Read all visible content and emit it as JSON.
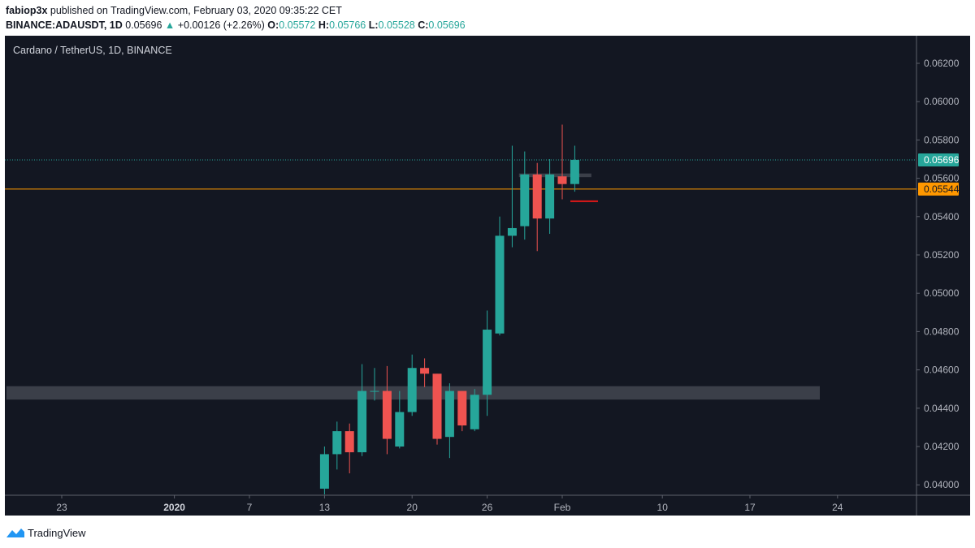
{
  "header": {
    "author": "fabiop3x",
    "published_text": " published on TradingView.com, February 03, 2020 09:35:22 CET",
    "symbol": "BINANCE:ADAUSDT, 1D",
    "last": "0.05696",
    "arrow": "▲",
    "change": "+0.00126 (+2.26%)",
    "o_label": "O:",
    "o_value": "0.05572",
    "h_label": "H:",
    "h_value": "0.05766",
    "l_label": "L:",
    "l_value": "0.05528",
    "c_label": "C:",
    "c_value": "0.05696"
  },
  "chart_title": "Cardano / TetherUS, 1D, BINANCE",
  "footer": {
    "brand": "TradingView"
  },
  "colors": {
    "background": "#131722",
    "up": "#26a69a",
    "down": "#ef5350",
    "axis_text": "#b2b5be",
    "orange_line": "#ff9800",
    "zone": "#4a4d57"
  },
  "chart_data": {
    "type": "candlestick",
    "title": "Cardano / TetherUS, 1D, BINANCE",
    "x_tick_labels": [
      "23",
      "2020",
      "7",
      "13",
      "20",
      "26",
      "Feb",
      "10",
      "17",
      "24"
    ],
    "y_tick_labels": [
      "0.06200",
      "0.06000",
      "0.05800",
      "0.05600",
      "0.05400",
      "0.05200",
      "0.05000",
      "0.04800",
      "0.04600",
      "0.04400",
      "0.04200",
      "0.04000"
    ],
    "ylim": [
      0.0394,
      0.0638
    ],
    "x_days_since_dec23": [
      0,
      9,
      15,
      21,
      28,
      34,
      40,
      48,
      55,
      62
    ],
    "candles": [
      {
        "open": 0.0398,
        "high": 0.042,
        "low": 0.0395,
        "close": 0.0416
      },
      {
        "open": 0.0416,
        "high": 0.0433,
        "low": 0.0408,
        "close": 0.0428
      },
      {
        "open": 0.0428,
        "high": 0.0432,
        "low": 0.0406,
        "close": 0.0417
      },
      {
        "open": 0.0417,
        "high": 0.0463,
        "low": 0.0415,
        "close": 0.0449
      },
      {
        "open": 0.0449,
        "high": 0.0461,
        "low": 0.0444,
        "close": 0.0449
      },
      {
        "open": 0.0449,
        "high": 0.0462,
        "low": 0.0416,
        "close": 0.0424
      },
      {
        "open": 0.042,
        "high": 0.0449,
        "low": 0.0419,
        "close": 0.0438
      },
      {
        "open": 0.0438,
        "high": 0.0468,
        "low": 0.0436,
        "close": 0.0461
      },
      {
        "open": 0.0461,
        "high": 0.0466,
        "low": 0.0451,
        "close": 0.0458
      },
      {
        "open": 0.0458,
        "high": 0.0458,
        "low": 0.0421,
        "close": 0.0424
      },
      {
        "open": 0.0425,
        "high": 0.0453,
        "low": 0.0414,
        "close": 0.0449
      },
      {
        "open": 0.0449,
        "high": 0.0449,
        "low": 0.0428,
        "close": 0.0431
      },
      {
        "open": 0.0429,
        "high": 0.045,
        "low": 0.0428,
        "close": 0.0447
      },
      {
        "open": 0.0447,
        "high": 0.0491,
        "low": 0.0436,
        "close": 0.0481
      },
      {
        "open": 0.0479,
        "high": 0.054,
        "low": 0.0478,
        "close": 0.053
      },
      {
        "open": 0.053,
        "high": 0.0577,
        "low": 0.0524,
        "close": 0.0534
      },
      {
        "open": 0.0535,
        "high": 0.0574,
        "low": 0.0528,
        "close": 0.0562
      },
      {
        "open": 0.0562,
        "high": 0.0568,
        "low": 0.0522,
        "close": 0.0539
      },
      {
        "open": 0.0539,
        "high": 0.057,
        "low": 0.0531,
        "close": 0.0562
      },
      {
        "open": 0.0561,
        "high": 0.0588,
        "low": 0.0549,
        "close": 0.0557
      },
      {
        "open": 0.0557,
        "high": 0.0577,
        "low": 0.0553,
        "close": 0.05696
      }
    ],
    "horizontal_levels": [
      {
        "value": 0.05696,
        "label": "0.05696",
        "style": "dotted",
        "color": "#26a69a"
      },
      {
        "value": 0.05544,
        "label": "0.05544",
        "style": "solid",
        "color": "#ff9800"
      }
    ],
    "zones": [
      {
        "from": 0.04445,
        "to": 0.04515
      },
      {
        "from": 0.05606,
        "to": 0.05625
      }
    ],
    "red_marker": {
      "value": 0.0548
    },
    "grid": false
  }
}
